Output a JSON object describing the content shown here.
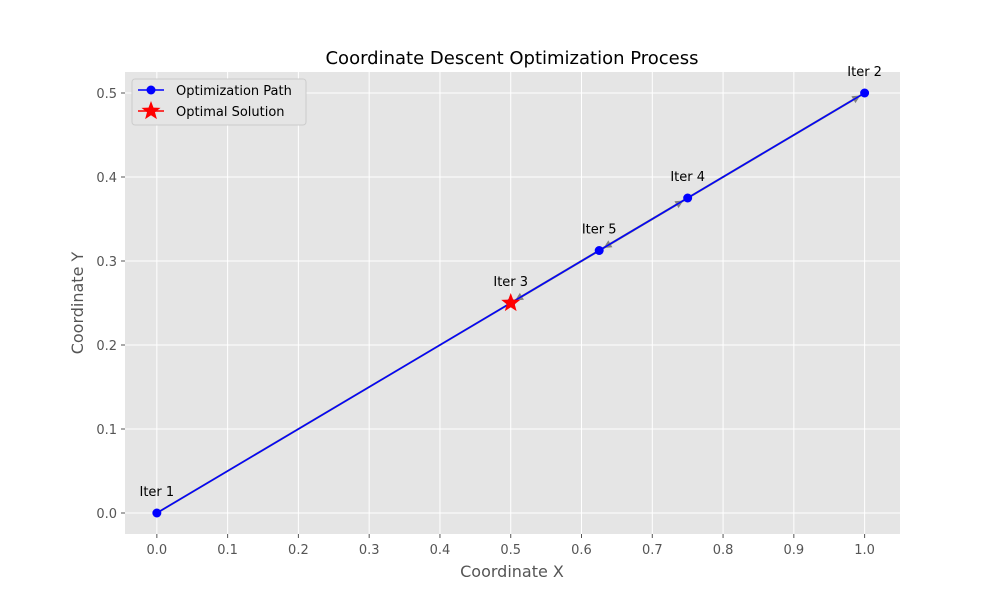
{
  "chart_data": {
    "type": "line",
    "title": "Coordinate Descent Optimization Process",
    "xlabel": "Coordinate X",
    "ylabel": "Coordinate Y",
    "xlim": [
      -0.045,
      1.05
    ],
    "ylim": [
      -0.025,
      0.525
    ],
    "xticks": [
      0.0,
      0.1,
      0.2,
      0.3,
      0.4,
      0.5,
      0.6,
      0.7,
      0.8,
      0.9,
      1.0
    ],
    "xtick_labels": [
      "0.0",
      "0.1",
      "0.2",
      "0.3",
      "0.4",
      "0.5",
      "0.6",
      "0.7",
      "0.8",
      "0.9",
      "1.0"
    ],
    "yticks": [
      0.0,
      0.1,
      0.2,
      0.3,
      0.4,
      0.5
    ],
    "ytick_labels": [
      "0.0",
      "0.1",
      "0.2",
      "0.3",
      "0.4",
      "0.5"
    ],
    "grid": true,
    "legend_position": "top-left",
    "series": [
      {
        "name": "Optimization Path",
        "color": "#0000ff",
        "marker": "circle",
        "points": [
          {
            "x": 0.0,
            "y": 0.0,
            "label": "Iter 1"
          },
          {
            "x": 1.0,
            "y": 0.5,
            "label": "Iter 2"
          },
          {
            "x": 0.5,
            "y": 0.25,
            "label": "Iter 3"
          },
          {
            "x": 0.75,
            "y": 0.375,
            "label": "Iter 4"
          },
          {
            "x": 0.625,
            "y": 0.3125,
            "label": "Iter 5"
          }
        ]
      },
      {
        "name": "Optimal Solution",
        "color": "#ff0000",
        "marker": "star",
        "points": [
          {
            "x": 0.5,
            "y": 0.25
          }
        ]
      }
    ],
    "arrow_color": "#808080"
  }
}
